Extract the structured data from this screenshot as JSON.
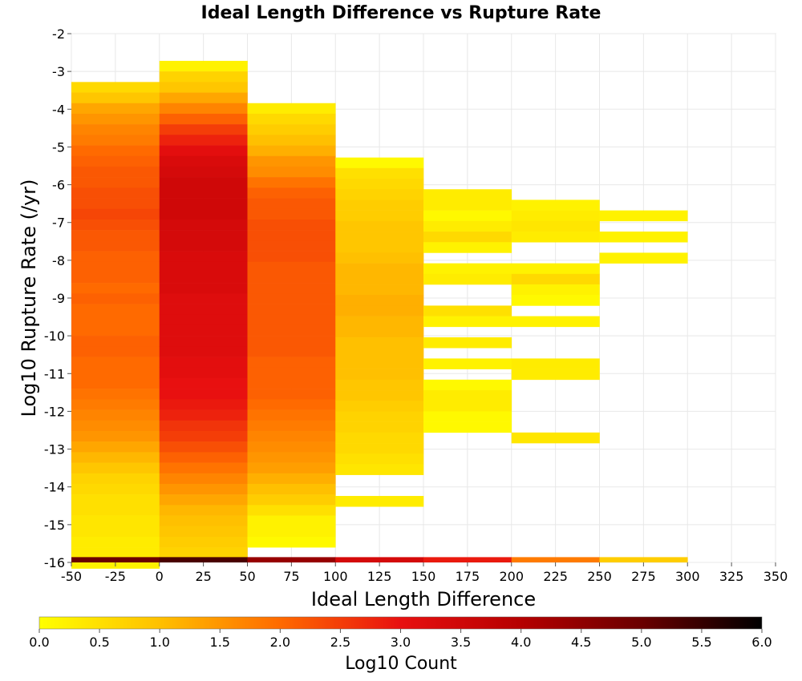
{
  "chart_data": {
    "type": "heatmap",
    "title": "Ideal Length Difference vs Rupture Rate",
    "xlabel": "Ideal Length Difference",
    "ylabel": "Log10 Rupture Rate (/yr)",
    "xlim": [
      -50,
      350
    ],
    "ylim": [
      -16,
      -2
    ],
    "x_ticks": [
      "-50",
      "-25",
      "0",
      "25",
      "50",
      "75",
      "100",
      "125",
      "150",
      "175",
      "200",
      "225",
      "250",
      "275",
      "300",
      "325",
      "350"
    ],
    "y_ticks": [
      "-2",
      "-3",
      "-4",
      "-5",
      "-6",
      "-7",
      "-8",
      "-9",
      "-10",
      "-11",
      "-12",
      "-13",
      "-14",
      "-15",
      "-16"
    ],
    "x_bin_width": 50,
    "y_bin_height": 0.28,
    "grid": true,
    "colorbar": {
      "label": "Log10 Count",
      "range": [
        0,
        6
      ],
      "ticks": [
        "0.0",
        "0.5",
        "1.0",
        "1.5",
        "2.0",
        "2.5",
        "3.0",
        "3.5",
        "4.0",
        "4.5",
        "5.0",
        "5.5",
        "6.0"
      ],
      "colors": [
        "#ffff00",
        "#ffc000",
        "#ff6a00",
        "#e81010",
        "#b50000",
        "#6a0000",
        "#000000"
      ]
    },
    "columns": [
      {
        "x_start": -50,
        "top_y": -3.28,
        "values": [
          0.6,
          0.9,
          1.3,
          1.5,
          1.7,
          1.8,
          2.0,
          2.1,
          2.2,
          2.2,
          2.3,
          2.3,
          2.4,
          2.3,
          2.2,
          2.2,
          2.1,
          2.1,
          2.1,
          2.0,
          2.1,
          2.0,
          2.0,
          2.0,
          2.1,
          2.1,
          2.0,
          2.0,
          2.0,
          1.9,
          1.8,
          1.7,
          1.6,
          1.5,
          1.3,
          1.1,
          0.9,
          0.7,
          0.6,
          0.5,
          0.5,
          0.4,
          0.4,
          0.3,
          0.3,
          0.2
        ]
      },
      {
        "x_start": 0,
        "top_y": -2.72,
        "values": [
          0.2,
          0.7,
          0.9,
          1.3,
          1.7,
          2.1,
          2.5,
          2.8,
          3.1,
          3.3,
          3.4,
          3.5,
          3.5,
          3.5,
          3.5,
          3.4,
          3.4,
          3.4,
          3.3,
          3.3,
          3.3,
          3.3,
          3.2,
          3.2,
          3.2,
          3.2,
          3.2,
          3.2,
          3.1,
          3.1,
          3.0,
          3.0,
          2.9,
          2.8,
          2.6,
          2.5,
          2.3,
          2.1,
          1.9,
          1.7,
          1.5,
          1.3,
          1.1,
          1.0,
          0.9,
          0.8,
          0.7
        ]
      },
      {
        "x_start": 50,
        "top_y": -3.84,
        "values": [
          0.3,
          0.6,
          0.8,
          1.0,
          1.2,
          1.5,
          1.6,
          1.9,
          2.1,
          2.2,
          2.2,
          2.3,
          2.3,
          2.3,
          2.3,
          2.2,
          2.2,
          2.2,
          2.2,
          2.2,
          2.2,
          2.2,
          2.2,
          2.2,
          2.1,
          2.1,
          2.1,
          2.1,
          2.0,
          1.9,
          1.8,
          1.7,
          1.6,
          1.5,
          1.4,
          1.2,
          1.0,
          0.8,
          0.5,
          0.2,
          0.2,
          0.1
        ]
      },
      {
        "x_start": 100,
        "top_y": -5.28,
        "values": [
          0.1,
          0.5,
          0.6,
          0.7,
          0.8,
          0.8,
          0.9,
          0.9,
          0.9,
          1.0,
          1.1,
          1.1,
          1.1,
          1.2,
          1.2,
          1.1,
          1.1,
          1.0,
          1.0,
          1.0,
          1.0,
          0.9,
          0.9,
          0.8,
          0.7,
          0.7,
          0.6,
          0.6,
          0.5,
          0.4,
          null,
          null,
          0.3
        ]
      },
      {
        "x_start": 150,
        "top_y": -6.12,
        "values": [
          0.3,
          0.3,
          0.1,
          0.3,
          0.6,
          0.2,
          null,
          0.2,
          0.3,
          null,
          null,
          0.5,
          0.2,
          null,
          0.3,
          null,
          0.2,
          null,
          0.1,
          0.3,
          0.3,
          0.1,
          0.1
        ]
      },
      {
        "x_start": 200,
        "top_y": -6.4,
        "values": [
          0.2,
          0.3,
          0.4,
          0.3,
          null,
          null,
          0.2,
          0.6,
          0.2,
          0.1,
          null,
          0.2,
          null,
          null,
          null,
          0.3,
          0.3,
          null,
          null,
          null,
          null,
          null,
          0.4
        ]
      },
      {
        "x_start": 250,
        "top_y": -6.68,
        "values": [
          0.2,
          null,
          0.2,
          null,
          0.2
        ]
      }
    ],
    "bottom_row": {
      "y_start": -15.86,
      "values": [
        5.0,
        5.3,
        4.4,
        3.4,
        2.9,
        1.8,
        0.8
      ]
    }
  }
}
